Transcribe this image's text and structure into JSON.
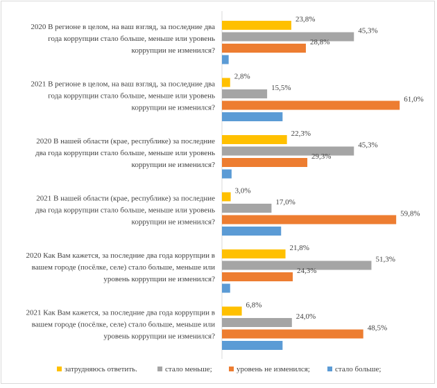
{
  "chart_data": {
    "type": "bar",
    "orientation": "horizontal",
    "xlim": [
      0,
      70
    ],
    "colors": {
      "dont_know": "#FFC000",
      "decreased": "#A5A5A5",
      "unchanged": "#ED7D31",
      "increased": "#5B9BD5"
    },
    "legend_position": "bottom",
    "series": [
      {
        "key": "dont_know",
        "name": "затрудняюсь ответить.",
        "labels": true
      },
      {
        "key": "decreased",
        "name": "стало меньше;",
        "labels": true
      },
      {
        "key": "unchanged",
        "name": "уровень не изменился;",
        "labels": true
      },
      {
        "key": "increased",
        "name": "стало больше;",
        "labels": false
      }
    ],
    "groups": [
      {
        "lines": [
          "2020 В регионе в целом, на ваш взгляд, за последние два",
          "года коррупции стало больше, меньше или уровень",
          "коррупции не изменился?"
        ],
        "values": [
          23.8,
          45.3,
          28.8,
          2.3
        ],
        "value_labels": [
          "23,8%",
          "45,3%",
          "28,8%",
          ""
        ]
      },
      {
        "lines": [
          "2021 В регионе в целом, на ваш взгляд, за последние два",
          "года коррупции стало больше, меньше или уровень",
          "коррупции не изменился?"
        ],
        "values": [
          2.8,
          15.5,
          61.0,
          20.8
        ],
        "value_labels": [
          "2,8%",
          "15,5%",
          "61,0%",
          ""
        ]
      },
      {
        "lines": [
          "2020 В нашей области (крае, республике) за последние",
          "два года коррупции стало больше, меньше или уровень",
          "коррупции не изменился?"
        ],
        "values": [
          22.3,
          45.3,
          29.3,
          3.3
        ],
        "value_labels": [
          "22,3%",
          "45,3%",
          "29,3%",
          ""
        ]
      },
      {
        "lines": [
          "2021 В нашей области (крае, республике) за последние",
          "два года коррупции стало больше, меньше или уровень",
          "коррупции не изменился?"
        ],
        "values": [
          3.0,
          17.0,
          59.8,
          20.3
        ],
        "value_labels": [
          "3,0%",
          "17,0%",
          "59,8%",
          ""
        ]
      },
      {
        "lines": [
          "2020 Как Вам кажется, за последние два года коррупции в",
          "вашем городе (посёлке, селе) стало больше, меньше или",
          "уровень коррупции не изменился?"
        ],
        "values": [
          21.8,
          51.3,
          24.3,
          2.8
        ],
        "value_labels": [
          "21,8%",
          "51,3%",
          "24,3%",
          ""
        ]
      },
      {
        "lines": [
          "2021 Как Вам кажется, за последние два года коррупции в",
          "вашем городе (посёлке, селе) стало больше, меньше или",
          "уровень коррупции не изменился?"
        ],
        "values": [
          6.8,
          24.0,
          48.5,
          20.8
        ],
        "value_labels": [
          "6,8%",
          "24,0%",
          "48,5%",
          ""
        ]
      }
    ]
  }
}
